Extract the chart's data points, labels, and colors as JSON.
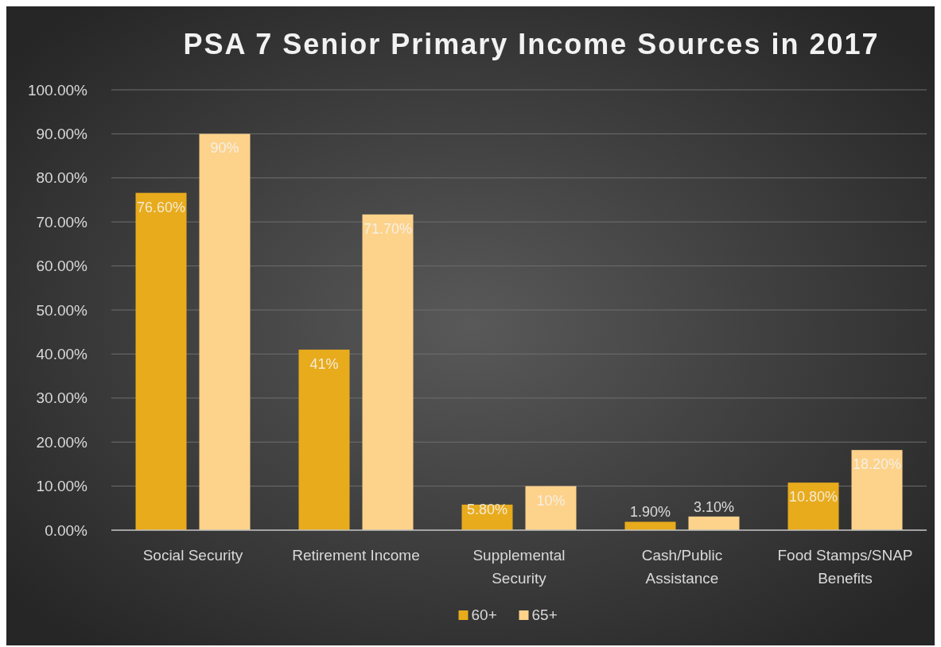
{
  "chart_data": {
    "type": "bar",
    "title": "PSA 7 Senior Primary Income Sources in 2017",
    "categories": [
      "Social Security",
      "Retirement Income",
      "Supplemental Security",
      "Cash/Public Assistance",
      "Food Stamps/SNAP Benefits"
    ],
    "series": [
      {
        "name": "60+",
        "color": "#e8ab1c",
        "values": [
          76.6,
          41,
          5.8,
          1.9,
          10.8
        ],
        "value_labels": [
          "76.60%",
          "41%",
          "5.80%",
          "1.90%",
          "10.80%"
        ]
      },
      {
        "name": "65+",
        "color": "#fdd28a",
        "values": [
          90,
          71.7,
          10,
          3.1,
          18.2
        ],
        "value_labels": [
          "90%",
          "71.70%",
          "10%",
          "3.10%",
          "18.20%"
        ]
      }
    ],
    "ylim": [
      0,
      100
    ],
    "yticks": [
      {
        "value": 0,
        "label": "0.00%"
      },
      {
        "value": 10,
        "label": "10.00%"
      },
      {
        "value": 20,
        "label": "20.00%"
      },
      {
        "value": 30,
        "label": "30.00%"
      },
      {
        "value": 40,
        "label": "40.00%"
      },
      {
        "value": 50,
        "label": "50.00%"
      },
      {
        "value": 60,
        "label": "60.00%"
      },
      {
        "value": 70,
        "label": "70.00%"
      },
      {
        "value": 80,
        "label": "80.00%"
      },
      {
        "value": 90,
        "label": "90.00%"
      },
      {
        "value": 100,
        "label": "100.00%"
      }
    ],
    "grid": "y",
    "legend": "bottom"
  }
}
